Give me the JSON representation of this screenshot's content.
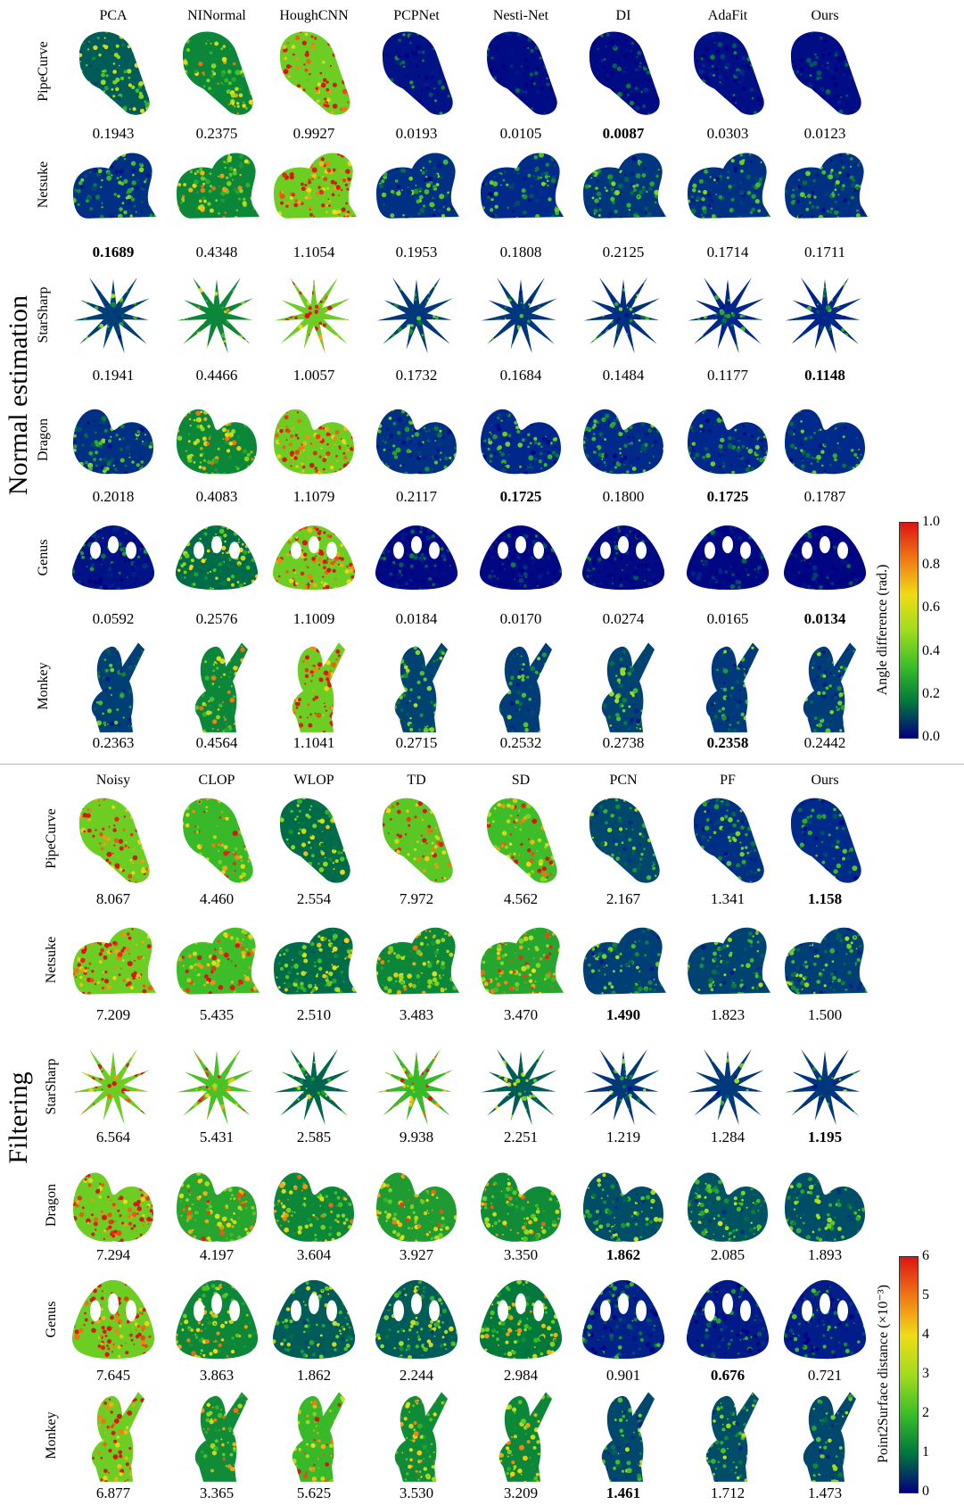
{
  "normal": {
    "section_label": "Normal estimation",
    "columns": [
      "PCA",
      "NINormal",
      "HoughCNN",
      "PCPNet",
      "Nesti-Net",
      "DI",
      "AdaFit",
      "Ours"
    ],
    "rows": [
      {
        "name": "PipeCurve",
        "shape": "pipe",
        "values": [
          "0.1943",
          "0.2375",
          "0.9927",
          "0.0193",
          "0.0105",
          "0.0087",
          "0.0303",
          "0.0123"
        ],
        "best": [
          5
        ]
      },
      {
        "name": "Netsuke",
        "shape": "netsuke",
        "values": [
          "0.1689",
          "0.4348",
          "1.1054",
          "0.1953",
          "0.1808",
          "0.2125",
          "0.1714",
          "0.1711"
        ],
        "best": [
          0
        ]
      },
      {
        "name": "StarSharp",
        "shape": "star",
        "values": [
          "0.1941",
          "0.4466",
          "1.0057",
          "0.1732",
          "0.1684",
          "0.1484",
          "0.1177",
          "0.1148"
        ],
        "best": [
          7
        ]
      },
      {
        "name": "Dragon",
        "shape": "dragon",
        "values": [
          "0.2018",
          "0.4083",
          "1.1079",
          "0.2117",
          "0.1725",
          "0.1800",
          "0.1725",
          "0.1787"
        ],
        "best": [
          4,
          6
        ]
      },
      {
        "name": "Genus",
        "shape": "genus",
        "values": [
          "0.0592",
          "0.2576",
          "1.1009",
          "0.0184",
          "0.0170",
          "0.0274",
          "0.0165",
          "0.0134"
        ],
        "best": [
          7
        ]
      },
      {
        "name": "Monkey",
        "shape": "monkey",
        "values": [
          "0.2363",
          "0.4564",
          "1.1041",
          "0.2715",
          "0.2532",
          "0.2738",
          "0.2358",
          "0.2442"
        ],
        "best": [
          6
        ]
      }
    ],
    "error_level": [
      [
        0.45,
        0.6,
        0.95,
        0.12,
        0.08,
        0.07,
        0.1,
        0.09
      ],
      [
        0.3,
        0.6,
        0.95,
        0.3,
        0.28,
        0.32,
        0.3,
        0.3
      ],
      [
        0.35,
        0.6,
        0.95,
        0.33,
        0.32,
        0.3,
        0.26,
        0.25
      ],
      [
        0.3,
        0.6,
        0.95,
        0.3,
        0.27,
        0.28,
        0.27,
        0.28
      ],
      [
        0.12,
        0.5,
        0.95,
        0.06,
        0.05,
        0.07,
        0.05,
        0.04
      ],
      [
        0.35,
        0.6,
        0.95,
        0.36,
        0.34,
        0.36,
        0.33,
        0.34
      ]
    ],
    "colorbar": {
      "title": "Angle difference (rad.)",
      "ticks": [
        "1.0",
        "0.8",
        "0.6",
        "0.4",
        "0.2",
        "0.0"
      ]
    }
  },
  "filtering": {
    "section_label": "Filtering",
    "columns": [
      "Noisy",
      "CLOP",
      "WLOP",
      "TD",
      "SD",
      "PCN",
      "PF",
      "Ours"
    ],
    "rows": [
      {
        "name": "PipeCurve",
        "shape": "pipe",
        "values": [
          "8.067",
          "4.460",
          "2.554",
          "7.972",
          "4.562",
          "2.167",
          "1.341",
          "1.158"
        ],
        "best": [
          7
        ]
      },
      {
        "name": "Netsuke",
        "shape": "netsuke",
        "values": [
          "7.209",
          "5.435",
          "2.510",
          "3.483",
          "3.470",
          "1.490",
          "1.823",
          "1.500"
        ],
        "best": [
          5
        ]
      },
      {
        "name": "StarSharp",
        "shape": "star",
        "values": [
          "6.564",
          "5.431",
          "2.585",
          "9.938",
          "2.251",
          "1.219",
          "1.284",
          "1.195"
        ],
        "best": [
          7
        ]
      },
      {
        "name": "Dragon",
        "shape": "dragon",
        "values": [
          "7.294",
          "4.197",
          "3.604",
          "3.927",
          "3.350",
          "1.862",
          "2.085",
          "1.893"
        ],
        "best": [
          5
        ]
      },
      {
        "name": "Genus",
        "shape": "genus",
        "values": [
          "7.645",
          "3.863",
          "1.862",
          "2.244",
          "2.984",
          "0.901",
          "0.676",
          "0.721"
        ],
        "best": [
          6
        ]
      },
      {
        "name": "Monkey",
        "shape": "monkey",
        "values": [
          "6.877",
          "3.365",
          "5.625",
          "3.530",
          "3.209",
          "1.461",
          "1.712",
          "1.473"
        ],
        "best": [
          5
        ]
      }
    ],
    "error_level": [
      [
        0.95,
        0.8,
        0.5,
        0.9,
        0.82,
        0.38,
        0.3,
        0.28
      ],
      [
        0.95,
        0.82,
        0.5,
        0.6,
        0.72,
        0.35,
        0.36,
        0.35
      ],
      [
        0.95,
        0.85,
        0.48,
        0.8,
        0.45,
        0.33,
        0.33,
        0.32
      ],
      [
        0.95,
        0.72,
        0.6,
        0.68,
        0.62,
        0.4,
        0.42,
        0.4
      ],
      [
        0.95,
        0.6,
        0.45,
        0.45,
        0.55,
        0.22,
        0.18,
        0.2
      ],
      [
        0.95,
        0.62,
        0.8,
        0.62,
        0.6,
        0.38,
        0.4,
        0.38
      ]
    ],
    "colorbar": {
      "title": "Point2Surface distance (×10⁻³)",
      "ticks": [
        "6",
        "5",
        "4",
        "3",
        "2",
        "1",
        "0"
      ]
    }
  }
}
